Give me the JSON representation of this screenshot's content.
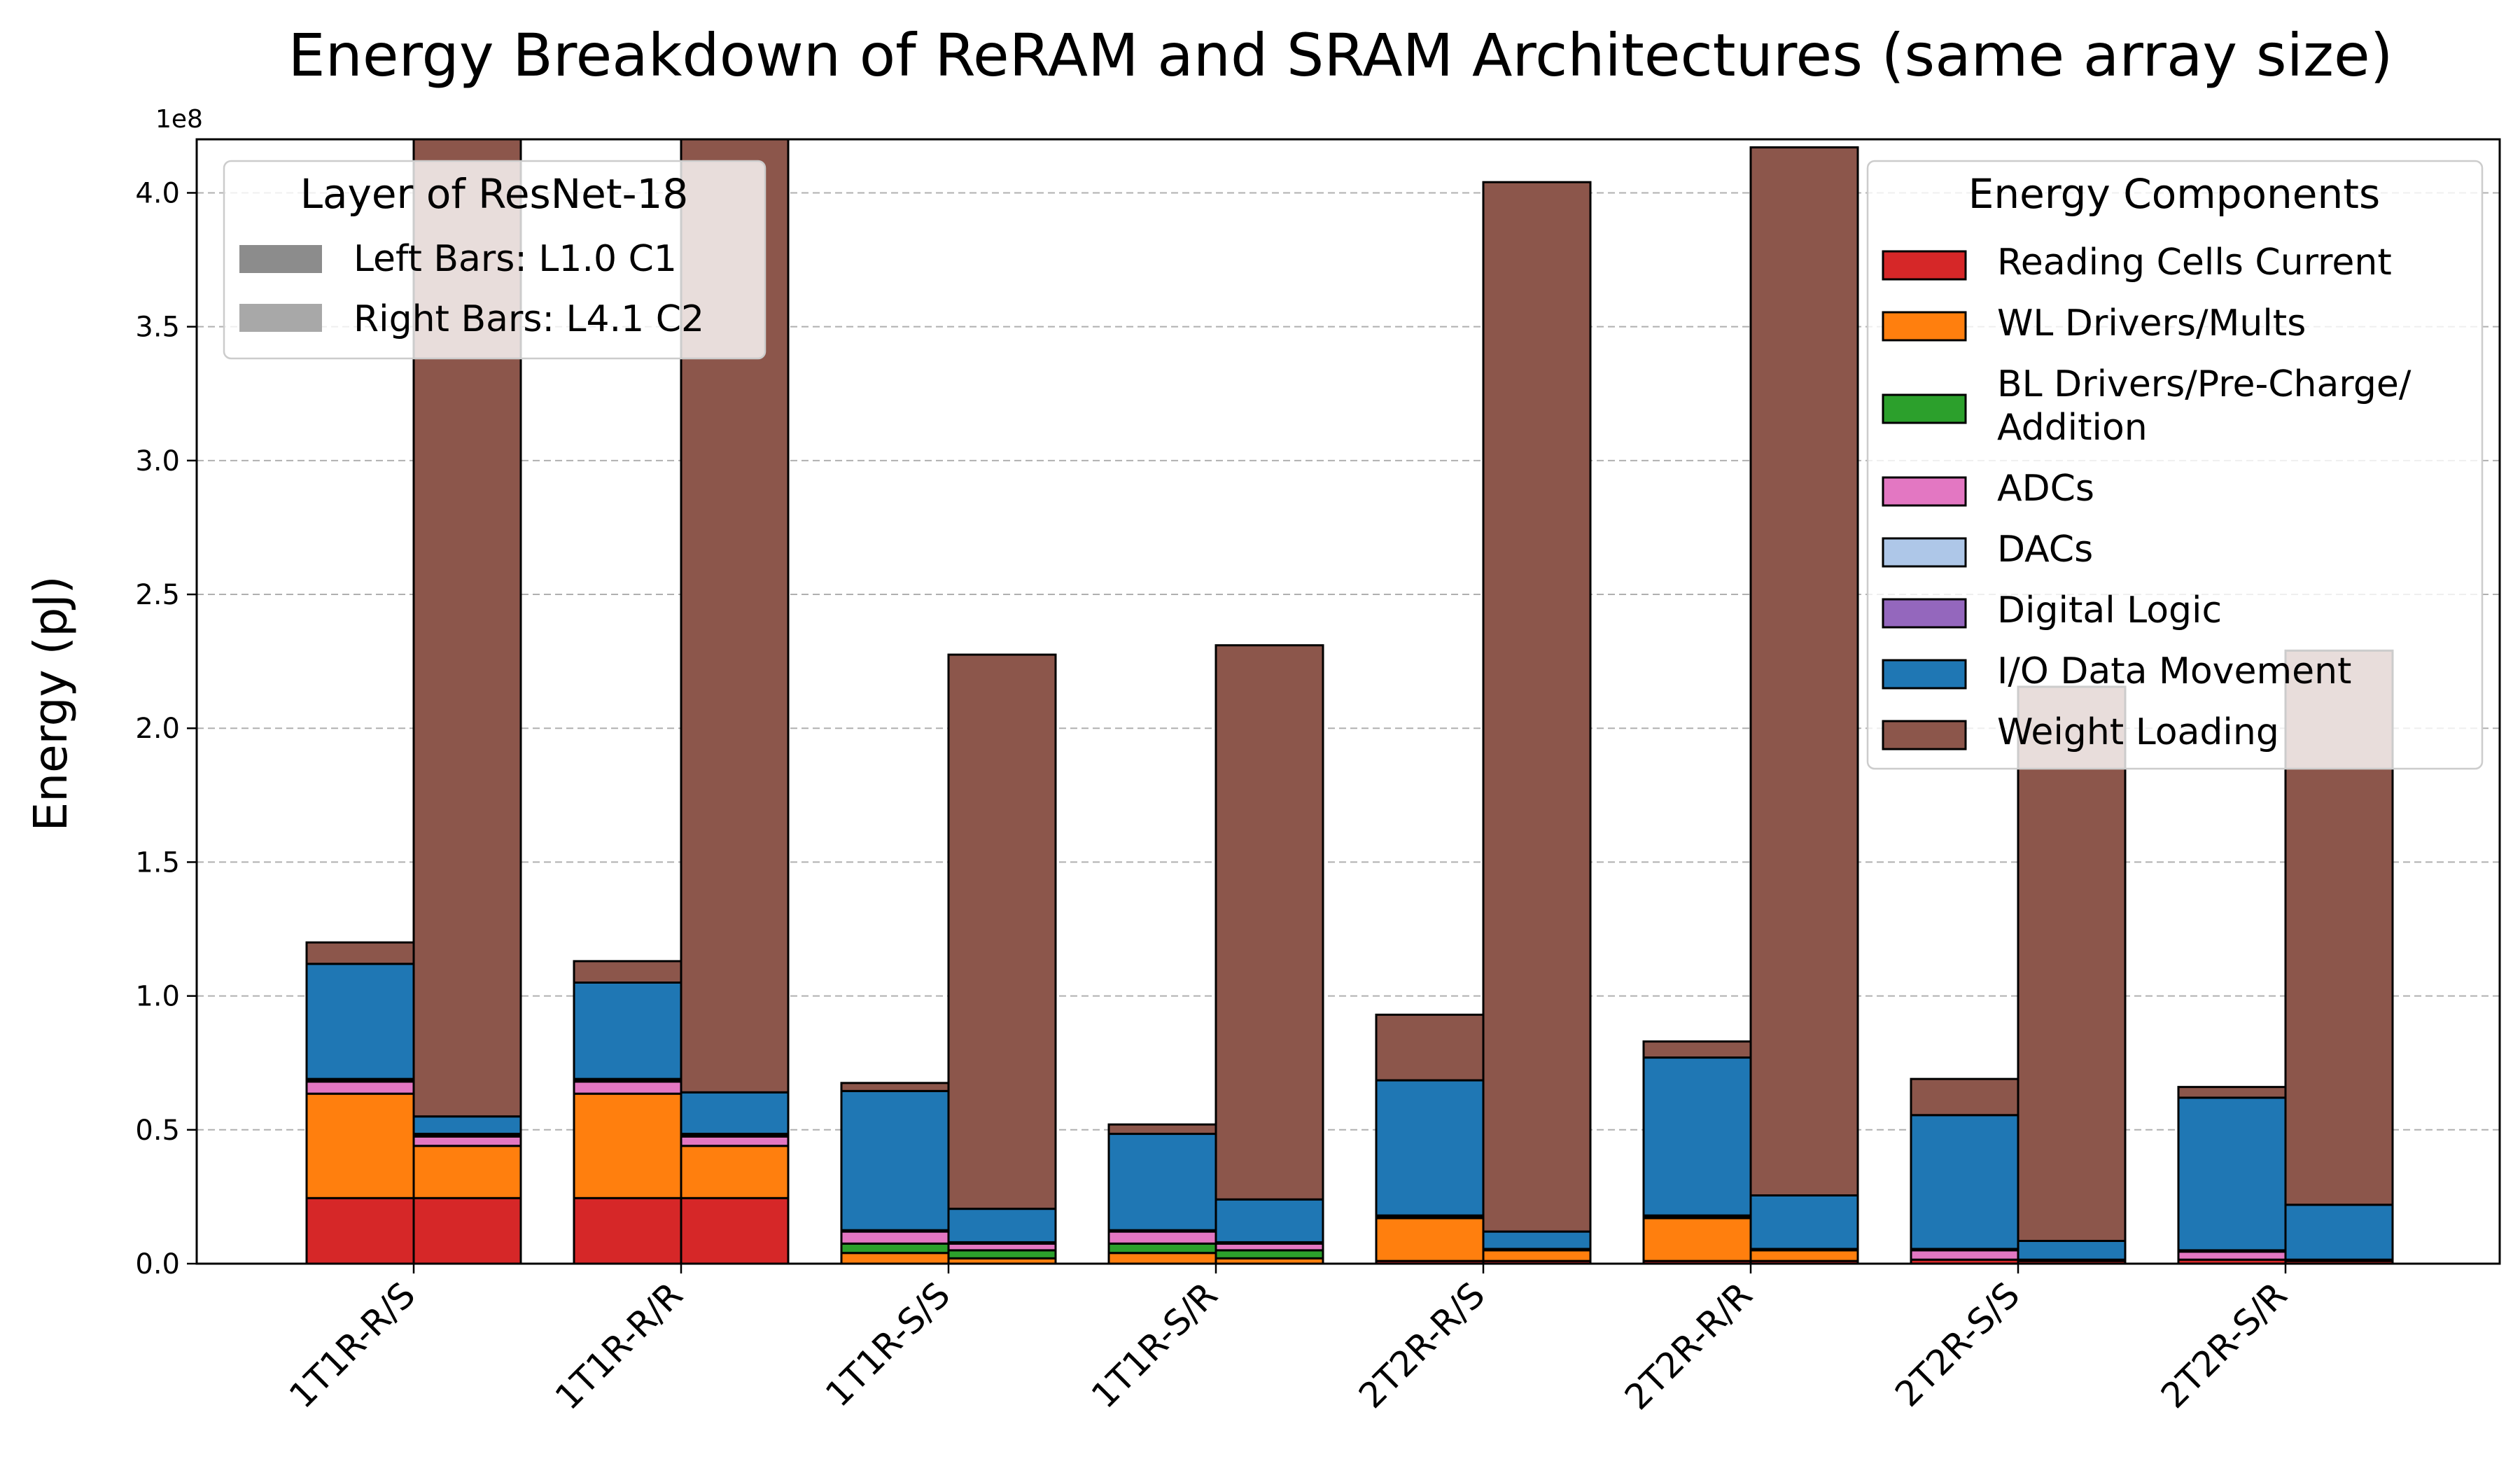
{
  "chart_data": {
    "type": "bar",
    "title": "Energy Breakdown of ReRAM and SRAM Architectures (same array size)",
    "ylabel": "Energy (pJ)",
    "xlabel": "",
    "y_scale_label": "1e8",
    "y_scale": 100000000,
    "ylim": [
      0,
      4.2
    ],
    "yticks": [
      "0.0",
      "0.5",
      "1.0",
      "1.5",
      "2.0",
      "2.5",
      "3.0",
      "3.5",
      "4.0"
    ],
    "grid": "y-dashed",
    "categories": [
      "1T1R-R/S",
      "1T1R-R/R",
      "1T1R-S/S",
      "1T1R-S/R",
      "2T2R-R/S",
      "2T2R-R/R",
      "2T2R-S/S",
      "2T2R-S/R"
    ],
    "components": [
      {
        "name": "Reading Cells Current",
        "color": "#d62728"
      },
      {
        "name": "WL Drivers/Mults",
        "color": "#ff7f0e"
      },
      {
        "name": "BL Drivers/Pre-Charge/\nAddition",
        "color": "#2ca02c"
      },
      {
        "name": "ADCs",
        "color": "#e377c2"
      },
      {
        "name": "DACs",
        "color": "#aec7e8"
      },
      {
        "name": "Digital Logic",
        "color": "#9467bd"
      },
      {
        "name": "I/O Data Movement",
        "color": "#1f77b4"
      },
      {
        "name": "Weight Loading",
        "color": "#8c564b"
      }
    ],
    "left_bars": [
      [
        0.245,
        0.39,
        0.0,
        0.045,
        0.005,
        0.005,
        0.43,
        0.08
      ],
      [
        0.245,
        0.39,
        0.0,
        0.045,
        0.005,
        0.005,
        0.36,
        0.08
      ],
      [
        0.0,
        0.04,
        0.035,
        0.045,
        0.005,
        0.0,
        0.52,
        0.03
      ],
      [
        0.0,
        0.04,
        0.035,
        0.045,
        0.005,
        0.0,
        0.36,
        0.035
      ],
      [
        0.01,
        0.16,
        0.0,
        0.0,
        0.005,
        0.005,
        0.505,
        0.245
      ],
      [
        0.01,
        0.16,
        0.0,
        0.0,
        0.005,
        0.005,
        0.59,
        0.06
      ],
      [
        0.015,
        0.0,
        0.0,
        0.035,
        0.005,
        0.0,
        0.5,
        0.135
      ],
      [
        0.015,
        0.0,
        0.0,
        0.03,
        0.005,
        0.0,
        0.57,
        0.04
      ]
    ],
    "right_bars": [
      [
        0.245,
        0.195,
        0.0,
        0.035,
        0.005,
        0.005,
        0.065,
        4.5
      ],
      [
        0.245,
        0.195,
        0.0,
        0.035,
        0.005,
        0.005,
        0.155,
        4.5
      ],
      [
        0.0,
        0.02,
        0.03,
        0.025,
        0.005,
        0.0,
        0.125,
        2.07
      ],
      [
        0.0,
        0.02,
        0.03,
        0.025,
        0.005,
        0.0,
        0.16,
        2.07
      ],
      [
        0.01,
        0.04,
        0.0,
        0.0,
        0.005,
        0.0,
        0.065,
        3.92
      ],
      [
        0.01,
        0.04,
        0.0,
        0.0,
        0.005,
        0.0,
        0.2,
        3.915
      ],
      [
        0.01,
        0.0,
        0.0,
        0.005,
        0.0,
        0.0,
        0.07,
        2.07
      ],
      [
        0.01,
        0.0,
        0.0,
        0.005,
        0.0,
        0.0,
        0.205,
        2.07
      ]
    ],
    "legend_layer": {
      "title": "Layer of ResNet-18",
      "entries": [
        "Left Bars: L1.0 C1",
        "Right Bars: L4.1 C2"
      ],
      "placement": "upper-left"
    },
    "legend_components": {
      "title": "Energy Components",
      "placement": "upper-right"
    }
  }
}
